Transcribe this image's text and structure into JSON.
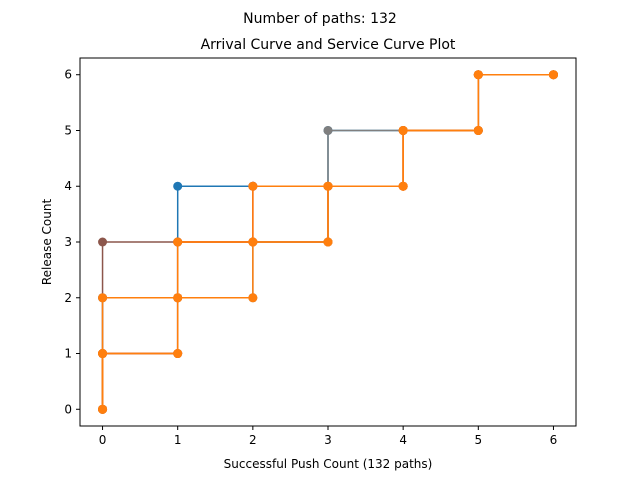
{
  "suptitle": "Number of paths: 132",
  "chart_data": {
    "type": "line",
    "title": "Arrival Curve and Service Curve Plot",
    "xlabel": "Successful Push Count (132 paths)",
    "ylabel": "Release Count",
    "xlim": [
      -0.3,
      6.3
    ],
    "ylim": [
      -0.3,
      6.3
    ],
    "xticks": [
      "0",
      "1",
      "2",
      "3",
      "4",
      "5",
      "6"
    ],
    "yticks": [
      "0",
      "1",
      "2",
      "3",
      "4",
      "5",
      "6"
    ],
    "grid": false,
    "legend": "none",
    "series": [
      {
        "color": "#1f77b4",
        "points": [
          [
            0,
            0
          ],
          [
            0,
            1
          ],
          [
            1,
            1
          ],
          [
            1,
            2
          ],
          [
            1,
            3
          ],
          [
            1,
            4
          ],
          [
            2,
            4
          ],
          [
            3,
            4
          ],
          [
            3,
            5
          ],
          [
            4,
            5
          ],
          [
            5,
            5
          ],
          [
            5,
            6
          ],
          [
            6,
            6
          ]
        ]
      },
      {
        "color": "#8c564b",
        "points": [
          [
            0,
            0
          ],
          [
            0,
            1
          ],
          [
            0,
            2
          ],
          [
            0,
            3
          ],
          [
            1,
            3
          ],
          [
            2,
            3
          ],
          [
            3,
            3
          ],
          [
            3,
            4
          ],
          [
            4,
            4
          ],
          [
            4,
            5
          ],
          [
            5,
            5
          ],
          [
            5,
            6
          ],
          [
            6,
            6
          ]
        ]
      },
      {
        "color": "#d62728",
        "points": [
          [
            0,
            0
          ],
          [
            0,
            1
          ],
          [
            1,
            1
          ],
          [
            1,
            2
          ],
          [
            1,
            3
          ],
          [
            2,
            3
          ],
          [
            2,
            4
          ],
          [
            3,
            4
          ],
          [
            4,
            4
          ],
          [
            4,
            5
          ],
          [
            5,
            5
          ],
          [
            5,
            6
          ],
          [
            6,
            6
          ]
        ]
      },
      {
        "color": "#7f7f7f",
        "points": [
          [
            0,
            0
          ],
          [
            0,
            1
          ],
          [
            0,
            2
          ],
          [
            1,
            2
          ],
          [
            2,
            2
          ],
          [
            2,
            3
          ],
          [
            3,
            3
          ],
          [
            3,
            4
          ],
          [
            3,
            5
          ],
          [
            4,
            5
          ],
          [
            5,
            5
          ],
          [
            5,
            6
          ],
          [
            6,
            6
          ]
        ]
      },
      {
        "color": "#ff7f0e",
        "points": [
          [
            0,
            0
          ],
          [
            0,
            1
          ],
          [
            1,
            1
          ],
          [
            1,
            2
          ],
          [
            2,
            2
          ],
          [
            2,
            3
          ],
          [
            3,
            3
          ],
          [
            3,
            4
          ],
          [
            4,
            4
          ],
          [
            4,
            5
          ],
          [
            5,
            5
          ],
          [
            5,
            6
          ],
          [
            6,
            6
          ]
        ]
      },
      {
        "color": "#ff7f0e",
        "points": [
          [
            0,
            0
          ],
          [
            0,
            1
          ],
          [
            1,
            1
          ],
          [
            1,
            2
          ],
          [
            1,
            3
          ],
          [
            2,
            3
          ],
          [
            2,
            4
          ],
          [
            3,
            4
          ],
          [
            4,
            4
          ],
          [
            4,
            5
          ],
          [
            5,
            5
          ],
          [
            5,
            6
          ],
          [
            6,
            6
          ]
        ]
      },
      {
        "color": "#ff7f0e",
        "points": [
          [
            0,
            0
          ],
          [
            0,
            1
          ],
          [
            0,
            2
          ],
          [
            1,
            2
          ],
          [
            1,
            3
          ],
          [
            2,
            3
          ],
          [
            3,
            3
          ],
          [
            3,
            4
          ],
          [
            4,
            4
          ],
          [
            4,
            5
          ],
          [
            5,
            5
          ],
          [
            5,
            6
          ],
          [
            6,
            6
          ]
        ]
      }
    ]
  }
}
